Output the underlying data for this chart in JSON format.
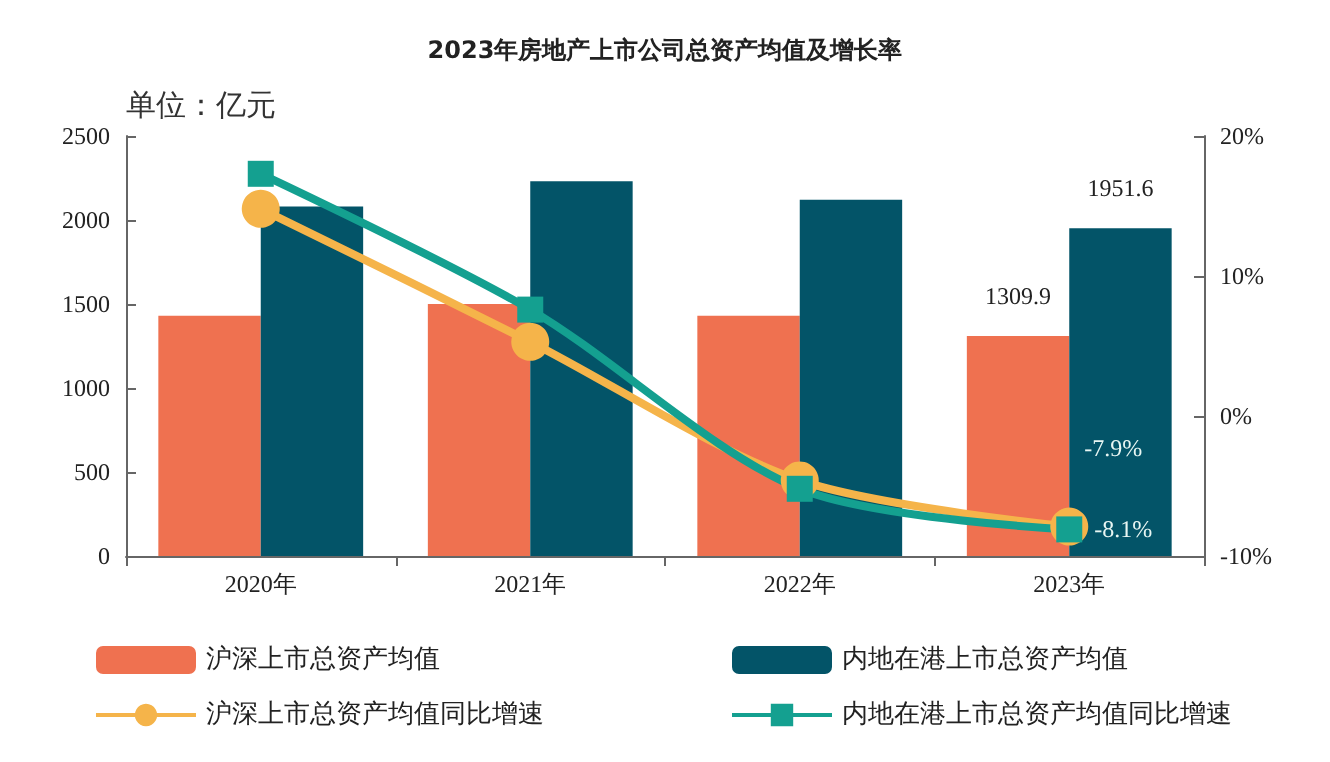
{
  "chart_data": {
    "type": "bar",
    "title": "2023年房地产上市公司总资产均值及增长率",
    "ylabel": "单位：亿元",
    "categories": [
      "2020年",
      "2021年",
      "2022年",
      "2023年"
    ],
    "series": [
      {
        "name": "沪深上市总资产均值",
        "color": "#ef7150",
        "values": [
          1430,
          1500,
          1430,
          1309.9
        ],
        "value_labels": [
          null,
          null,
          null,
          "1309.9"
        ]
      },
      {
        "name": "内地在港上市总资产均值",
        "color": "#035468",
        "values": [
          2080,
          2230,
          2120,
          1951.6
        ],
        "value_labels": [
          null,
          null,
          null,
          "1951.6"
        ]
      },
      {
        "name": "沪深上市总资产均值同比增速",
        "type": "line",
        "axis": "y2",
        "marker": "circle",
        "color": "#f5b44a",
        "values": [
          14.8,
          5.3,
          -4.6,
          -7.9
        ],
        "value_labels": [
          null,
          null,
          null,
          "-7.9%"
        ]
      },
      {
        "name": "内地在港上市总资产均值同比增速",
        "type": "line",
        "axis": "y2",
        "marker": "square",
        "color": "#14a090",
        "values": [
          17.3,
          7.6,
          -5.2,
          -8.1
        ],
        "value_labels": [
          null,
          null,
          null,
          "-8.1%"
        ]
      }
    ],
    "ylim": [
      0,
      2500
    ],
    "yticks": [
      0,
      500,
      1000,
      1500,
      2000,
      2500
    ],
    "y2lim": [
      -10,
      20
    ],
    "y2ticks": [
      {
        "value": -10,
        "label": "-10%"
      },
      {
        "value": 0,
        "label": "0%"
      },
      {
        "value": 10,
        "label": "10%"
      },
      {
        "value": 20,
        "label": "20%"
      }
    ],
    "grid": false,
    "legend": "bottom"
  }
}
